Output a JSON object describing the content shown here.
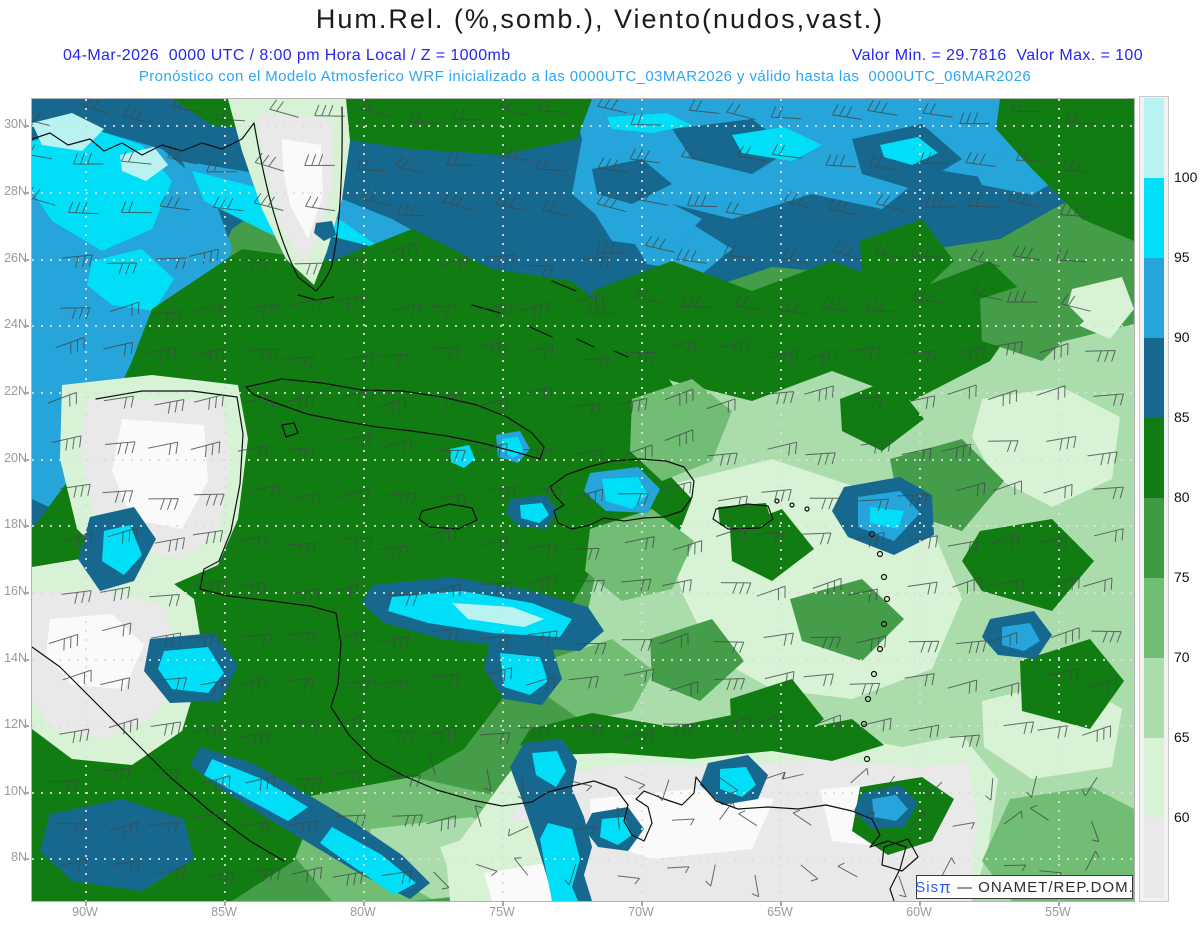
{
  "header": {
    "title": "Hum.Rel. (%,somb.), Viento(nudos,vast.)",
    "line1_left": "04-Mar-2026  0000 UTC / 8:00 pm Hora Local / Z = 1000mb",
    "line1_right": "Valor Min. = 29.7816  Valor Max. = 100",
    "line2": "Pronóstico con el Modelo Atmosferico WRF inicializado a las 0000UTC_03MAR2026 y válido hasta las  0000UTC_06MAR2026"
  },
  "axes": {
    "lat_labels": [
      "30N",
      "28N",
      "26N",
      "24N",
      "22N",
      "20N",
      "18N",
      "16N",
      "14N",
      "12N",
      "10N",
      "8N"
    ],
    "lon_labels": [
      "90W",
      "85W",
      "80W",
      "75W",
      "70W",
      "65W",
      "60W",
      "55W"
    ]
  },
  "colorbar": {
    "tick_labels": [
      "100",
      "95",
      "90",
      "85",
      "80",
      "75",
      "70",
      "65",
      "60"
    ],
    "segment_colors": [
      "#b8f3f1",
      "#00dff7",
      "#25a5da",
      "#16688f",
      "#117c11",
      "#3f9b43",
      "#72bd74",
      "#abdcab",
      "#d7f2d5",
      "#e9e9e9"
    ],
    "quantity": "Relative humidity (%)",
    "min_value": "29.7816",
    "max_value": "100"
  },
  "watermark": {
    "sis": "Sis",
    "pi": "π",
    "rest": " — ONAMET/REP.DOM."
  }
}
